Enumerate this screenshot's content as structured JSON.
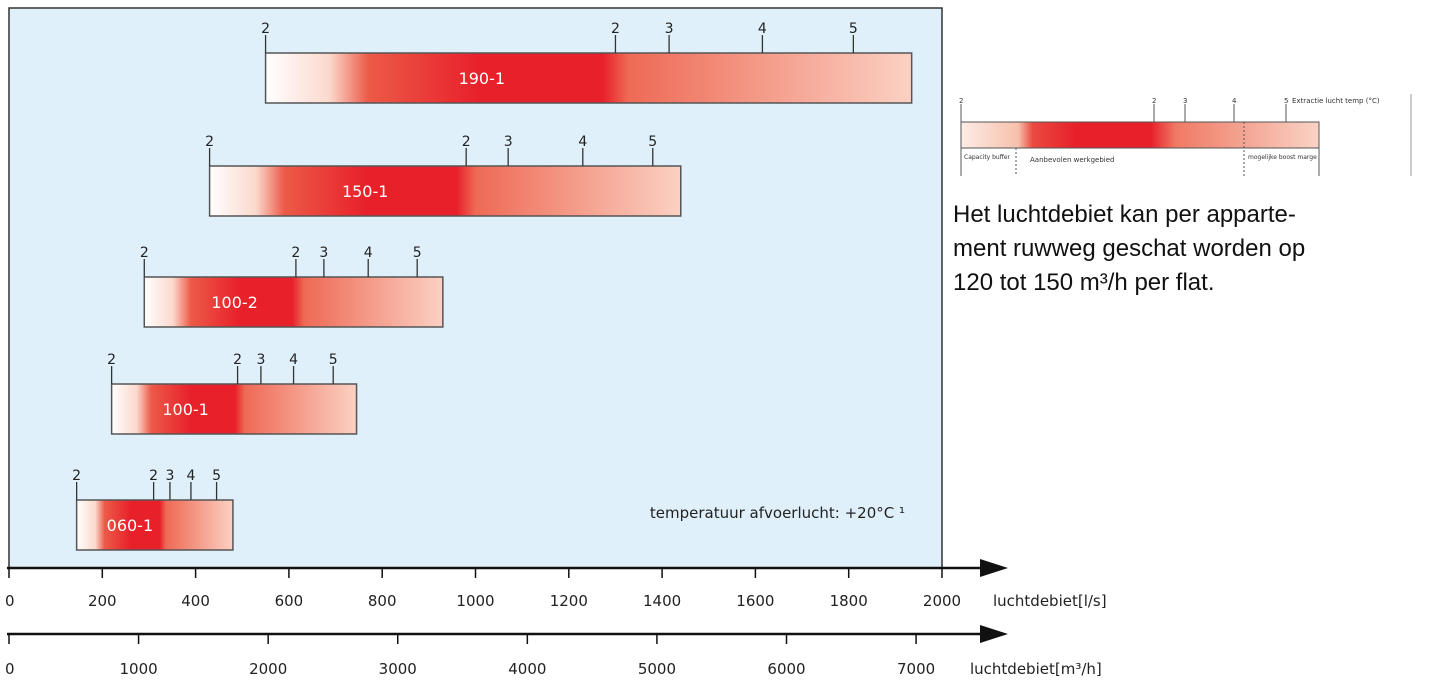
{
  "chart_data": {
    "type": "bar",
    "bar_style": "horizontal range bars with red gradient",
    "plot_background": "#dff0fa",
    "bar_colors": {
      "light": "#fde8e0",
      "strong": "#e8202a"
    },
    "x_axis_ls": {
      "label": "luchtdebiet[l/s]",
      "range": [
        0,
        2000
      ],
      "ticks": [
        0,
        200,
        400,
        600,
        800,
        1000,
        1200,
        1400,
        1600,
        1800,
        2000
      ]
    },
    "x_axis_m3h": {
      "label": "luchtdebiet[m³/h]",
      "range": [
        0,
        7200
      ],
      "ticks": [
        0,
        1000,
        2000,
        3000,
        4000,
        5000,
        6000,
        7000
      ]
    },
    "bars": [
      {
        "name": "190-1",
        "start": 550,
        "end": 1935,
        "red_start": 770,
        "red_end": 1300,
        "markers": [
          {
            "label": "2",
            "value": 550
          },
          {
            "label": "2",
            "value": 1300
          },
          {
            "label": "3",
            "value": 1415
          },
          {
            "label": "4",
            "value": 1615
          },
          {
            "label": "5",
            "value": 1810
          }
        ]
      },
      {
        "name": "150-1",
        "start": 430,
        "end": 1440,
        "red_start": 590,
        "red_end": 980,
        "markers": [
          {
            "label": "2",
            "value": 430
          },
          {
            "label": "2",
            "value": 980
          },
          {
            "label": "3",
            "value": 1070
          },
          {
            "label": "4",
            "value": 1230
          },
          {
            "label": "5",
            "value": 1380
          }
        ]
      },
      {
        "name": "100-2",
        "start": 290,
        "end": 930,
        "red_start": 390,
        "red_end": 620,
        "markers": [
          {
            "label": "2",
            "value": 290
          },
          {
            "label": "2",
            "value": 615
          },
          {
            "label": "3",
            "value": 675
          },
          {
            "label": "4",
            "value": 770
          },
          {
            "label": "5",
            "value": 875
          }
        ]
      },
      {
        "name": "100-1",
        "start": 220,
        "end": 745,
        "red_start": 305,
        "red_end": 495,
        "markers": [
          {
            "label": "2",
            "value": 220
          },
          {
            "label": "2",
            "value": 490
          },
          {
            "label": "3",
            "value": 540
          },
          {
            "label": "4",
            "value": 610
          },
          {
            "label": "5",
            "value": 695
          }
        ]
      },
      {
        "name": "060-1",
        "start": 145,
        "end": 480,
        "red_start": 205,
        "red_end": 330,
        "markers": [
          {
            "label": "2",
            "value": 145
          },
          {
            "label": "2",
            "value": 310
          },
          {
            "label": "3",
            "value": 345
          },
          {
            "label": "4",
            "value": 390
          },
          {
            "label": "5",
            "value": 445
          }
        ]
      }
    ],
    "annotation": "temperatuur afvoerlucht: +20°C ¹"
  },
  "legend": {
    "markers": [
      "2",
      "2",
      "3",
      "4",
      "5"
    ],
    "top_label": "Extractie lucht temp (°C)",
    "zone_labels": [
      "Capacity buffer",
      "Aanbevolen werkgebied",
      "mogelijke boost marge"
    ]
  },
  "description_lines": [
    "Het luchtdebiet kan per apparte-",
    "ment ruwweg geschat worden op",
    "120 tot 150 m³/h per flat."
  ]
}
